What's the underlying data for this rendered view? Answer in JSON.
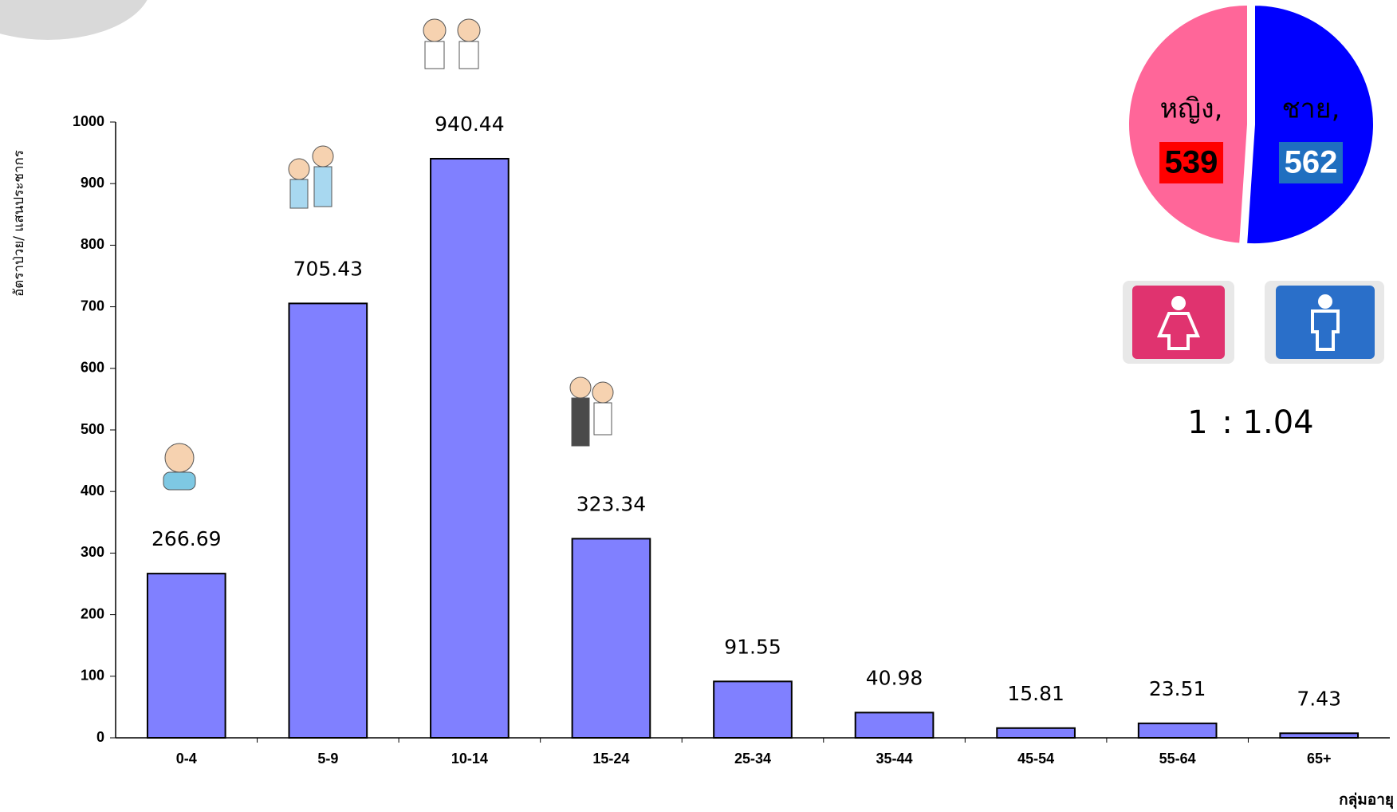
{
  "chart_data": [
    {
      "type": "bar",
      "y_label": "อัตราป่วย/ แสนประชากร",
      "x_label": "กลุ่มอายุ",
      "categories": [
        "0-4",
        "5-9",
        "10-14",
        "15-24",
        "25-34",
        "35-44",
        "45-54",
        "55-64",
        "65+"
      ],
      "values": [
        266.69,
        705.43,
        940.44,
        323.34,
        91.55,
        40.98,
        15.81,
        23.51,
        7.43
      ],
      "color": "#8080ff",
      "ylim": [
        0,
        1000
      ],
      "yticks": [
        0,
        100,
        200,
        300,
        400,
        500,
        600,
        700,
        800,
        900,
        1000
      ],
      "grid": false
    },
    {
      "type": "pie",
      "categories": [
        "หญิง,",
        "ชาย,"
      ],
      "values": [
        539,
        562
      ],
      "colors": [
        "#ff6699",
        "#0000ff"
      ],
      "label_box_colors": [
        "#ff0000",
        "#1f6fc0"
      ],
      "label_text_colors": [
        "#000000",
        "#ffffff"
      ],
      "annotations": [
        "1",
        ": 1.04"
      ]
    }
  ]
}
